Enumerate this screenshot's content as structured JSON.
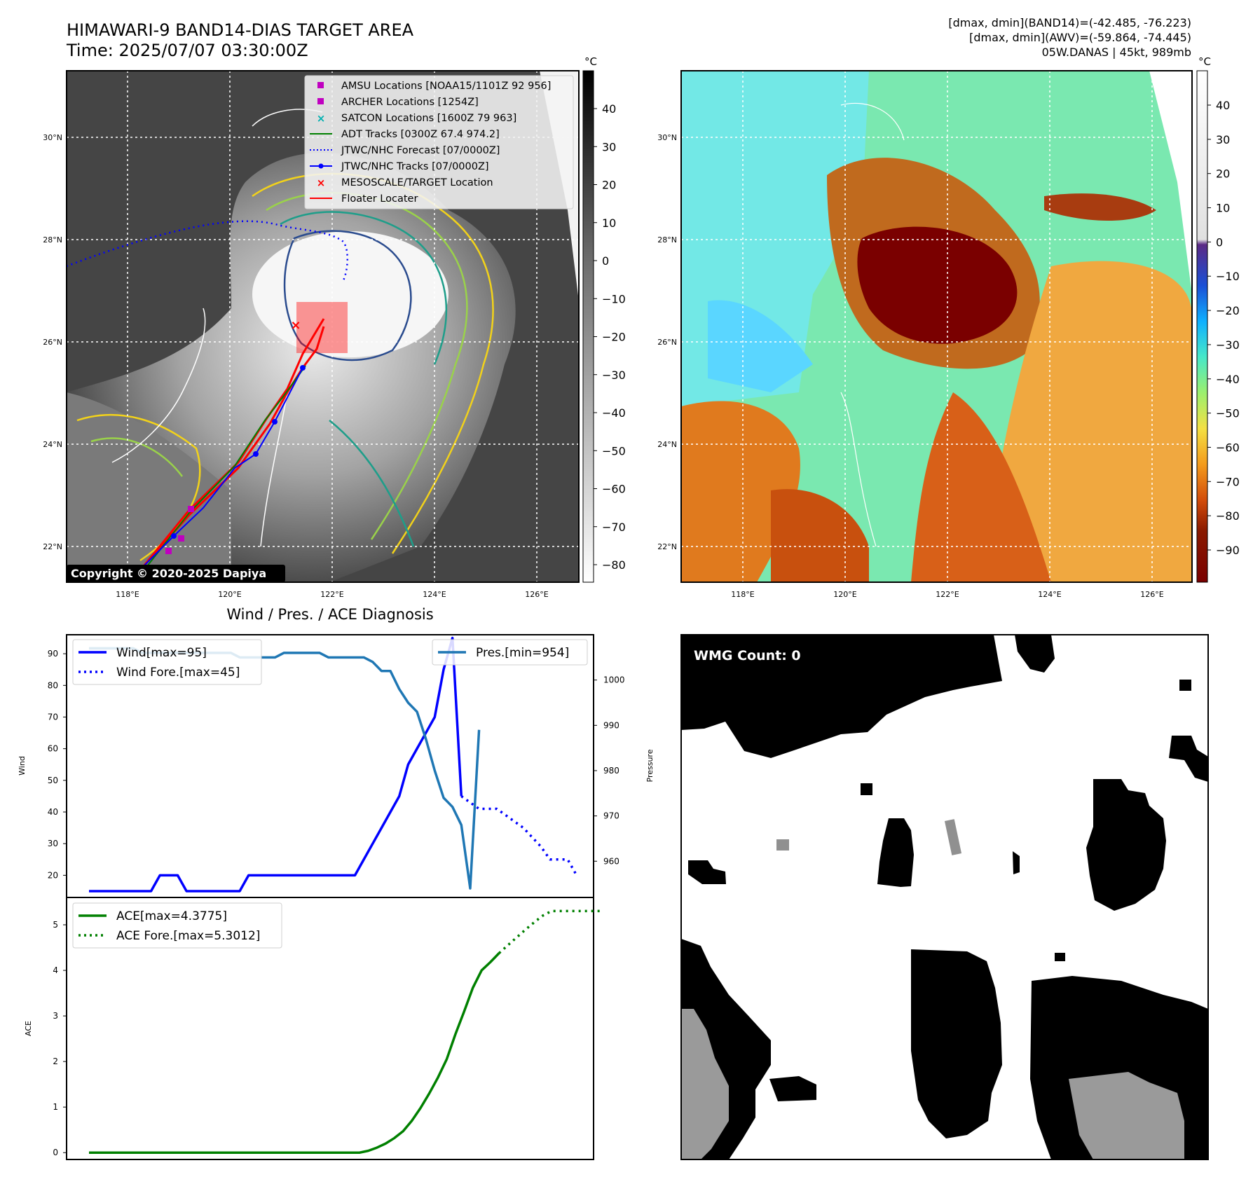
{
  "header": {
    "title": "HIMAWARI-9 BAND14-DIAS TARGET AREA",
    "time": "Time: 2025/07/07 03:30:00Z",
    "info_line1": "[dmax, dmin](BAND14)=(-42.485, -76.223)",
    "info_line2": "[dmax, dmin](AWV)=(-59.864, -74.445)",
    "info_line3": "05W.DANAS | 45kt, 989mb"
  },
  "map": {
    "lat_labels": [
      "30°N",
      "28°N",
      "26°N",
      "24°N",
      "22°N"
    ],
    "lon_labels": [
      "118°E",
      "120°E",
      "122°E",
      "124°E",
      "126°E"
    ],
    "copyright": "Copyright © 2020-2025 Dapiya",
    "legend": [
      {
        "label": "AMSU Locations [NOAA15/1101Z 92 956]",
        "color": "#c000c0",
        "marker": "square"
      },
      {
        "label": "ARCHER Locations [1254Z]",
        "color": "#c000c0",
        "marker": "square"
      },
      {
        "label": "SATCON Locations [1600Z 79 963]",
        "color": "#00b0b0",
        "marker": "x"
      },
      {
        "label": "ADT Tracks [0300Z 67.4 974.2]",
        "color": "#008000",
        "marker": "line"
      },
      {
        "label": "JTWC/NHC Forecast [07/0000Z]",
        "color": "#0000ff",
        "marker": "dotted"
      },
      {
        "label": "JTWC/NHC Tracks [07/0000Z]",
        "color": "#0000ff",
        "marker": "line-dot"
      },
      {
        "label": "MESOSCALE/TARGET Location",
        "color": "#ff0000",
        "marker": "x"
      },
      {
        "label": "Floater Locater",
        "color": "#ff0000",
        "marker": "line"
      }
    ]
  },
  "colorbar_left": {
    "unit": "°C",
    "ticks": [
      "40",
      "30",
      "20",
      "10",
      "0",
      "−10",
      "−20",
      "−30",
      "−40",
      "−50",
      "−60",
      "−70",
      "−80"
    ]
  },
  "colorbar_right": {
    "unit": "°C",
    "ticks": [
      "40",
      "30",
      "20",
      "10",
      "0",
      "−10",
      "−20",
      "−30",
      "−40",
      "−50",
      "−60",
      "−70",
      "−80",
      "−90"
    ]
  },
  "diagnosis_title": "Wind / Pres. / ACE Diagnosis",
  "wmg_label": "WMG Count: 0",
  "colors": {
    "wind": "#0000ff",
    "pressure": "#1f77b4",
    "ace": "#008000",
    "marker_red": "#ff0000"
  },
  "chart_data": [
    {
      "type": "line",
      "xlabel": "",
      "ylabel": "Wind",
      "y2label": "Pressure",
      "ylim": [
        13,
        96
      ],
      "y2lim": [
        952,
        1010
      ],
      "yticks": [
        20,
        30,
        40,
        50,
        60,
        70,
        80,
        90
      ],
      "y2ticks": [
        960,
        970,
        980,
        990,
        1000
      ],
      "series": [
        {
          "name": "Wind[max=95]",
          "axis": "left",
          "style": "solid",
          "values": [
            15,
            15,
            15,
            15,
            15,
            15,
            15,
            15,
            20,
            20,
            20,
            15,
            15,
            15,
            15,
            15,
            15,
            15,
            20,
            20,
            20,
            20,
            20,
            20,
            20,
            20,
            20,
            20,
            20,
            20,
            20,
            25,
            30,
            35,
            40,
            45,
            55,
            60,
            65,
            70,
            85,
            95,
            45
          ]
        },
        {
          "name": "Wind Fore.[max=45]",
          "axis": "left",
          "start_index": 42,
          "style": "dotted",
          "values": [
            45,
            43,
            41,
            41,
            41,
            39,
            37,
            35,
            32,
            29,
            25,
            25,
            25,
            20
          ]
        },
        {
          "name": "Pres.[min=954]",
          "axis": "right",
          "style": "solid",
          "values": [
            1007,
            1007,
            1007,
            1007,
            1007,
            1007,
            1006,
            1006,
            1006,
            1006,
            1006,
            1006,
            1006,
            1006,
            1006,
            1006,
            1006,
            1005,
            1005,
            1005,
            1005,
            1005,
            1006,
            1006,
            1006,
            1006,
            1006,
            1005,
            1005,
            1005,
            1005,
            1005,
            1004,
            1002,
            1002,
            998,
            995,
            993,
            987,
            980,
            974,
            972,
            968,
            954,
            989
          ]
        }
      ]
    },
    {
      "type": "line",
      "xlabel": "",
      "ylabel": "ACE",
      "ylim": [
        -0.15,
        5.6
      ],
      "yticks": [
        0,
        1,
        2,
        3,
        4,
        5
      ],
      "series": [
        {
          "name": "ACE[max=4.3775]",
          "style": "solid",
          "values": [
            0,
            0,
            0,
            0,
            0,
            0,
            0,
            0,
            0,
            0,
            0,
            0,
            0,
            0,
            0,
            0,
            0,
            0,
            0,
            0,
            0,
            0,
            0,
            0,
            0,
            0,
            0,
            0,
            0,
            0,
            0,
            0,
            0.04,
            0.11,
            0.2,
            0.32,
            0.47,
            0.7,
            0.98,
            1.3,
            1.65,
            2.05,
            2.6,
            3.1,
            3.62,
            4.0,
            4.18,
            4.3775
          ]
        },
        {
          "name": "ACE Fore.[max=5.3012]",
          "start_index": 47,
          "style": "dotted",
          "values": [
            4.3775,
            4.55,
            4.72,
            4.89,
            5.05,
            5.2,
            5.3012,
            5.3012,
            5.3012,
            5.3012,
            5.3012,
            5.3012,
            5.3012
          ]
        }
      ]
    }
  ]
}
